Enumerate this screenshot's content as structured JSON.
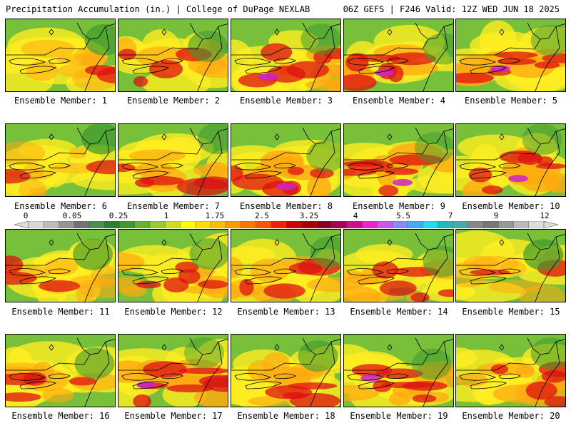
{
  "header": {
    "title": "Precipitation Accumulation (in.) | College of DuPage NEXLAB",
    "run_info": "06Z GEFS | F246 Valid: 12Z WED JUN 18 2025"
  },
  "members": [
    {
      "label": "Ensemble Member: 1",
      "intensity": 0.3
    },
    {
      "label": "Ensemble Member: 2",
      "intensity": 0.55
    },
    {
      "label": "Ensemble Member: 3",
      "intensity": 0.7
    },
    {
      "label": "Ensemble Member: 4",
      "intensity": 0.7
    },
    {
      "label": "Ensemble Member: 5",
      "intensity": 0.75
    },
    {
      "label": "Ensemble Member: 6",
      "intensity": 0.2
    },
    {
      "label": "Ensemble Member: 7",
      "intensity": 0.6
    },
    {
      "label": "Ensemble Member: 8",
      "intensity": 0.8
    },
    {
      "label": "Ensemble Member: 9",
      "intensity": 0.8
    },
    {
      "label": "Ensemble Member: 10",
      "intensity": 0.75
    },
    {
      "label": "Ensemble Member: 11",
      "intensity": 0.35
    },
    {
      "label": "Ensemble Member: 12",
      "intensity": 0.6
    },
    {
      "label": "Ensemble Member: 13",
      "intensity": 0.55
    },
    {
      "label": "Ensemble Member: 14",
      "intensity": 0.6
    },
    {
      "label": "Ensemble Member: 15",
      "intensity": 0.25
    },
    {
      "label": "Ensemble Member: 16",
      "intensity": 0.5
    },
    {
      "label": "Ensemble Member: 17",
      "intensity": 0.85
    },
    {
      "label": "Ensemble Member: 18",
      "intensity": 0.5
    },
    {
      "label": "Ensemble Member: 19",
      "intensity": 0.7
    },
    {
      "label": "Ensemble Member: 20",
      "intensity": 0.65
    }
  ],
  "colorbar": {
    "labels": [
      "0",
      "0.05",
      "0.25",
      "1",
      "1.75",
      "2.5",
      "3.25",
      "4",
      "5.5",
      "7",
      "9",
      "12"
    ],
    "colors": [
      "#d9d9d9",
      "#bdbdbd",
      "#969696",
      "#737373",
      "#4d8f4d",
      "#2e7d32",
      "#3f9a2e",
      "#66b32e",
      "#99cc33",
      "#ccdd22",
      "#ffff00",
      "#ffdd00",
      "#ffbb00",
      "#ff9900",
      "#ff7700",
      "#ff5500",
      "#ee2200",
      "#cc0000",
      "#aa0000",
      "#880022",
      "#aa0055",
      "#cc1188",
      "#ee22cc",
      "#cc55ee",
      "#8888ff",
      "#44aaff",
      "#22ddee",
      "#22bbbb",
      "#44aaaa",
      "#888888",
      "#777777",
      "#999999",
      "#bbbbbb",
      "#dddddd"
    ]
  }
}
